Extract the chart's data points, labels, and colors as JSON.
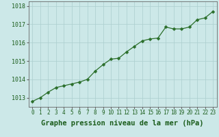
{
  "x": [
    0,
    1,
    2,
    3,
    4,
    5,
    6,
    7,
    8,
    9,
    10,
    11,
    12,
    13,
    14,
    15,
    16,
    17,
    18,
    19,
    20,
    21,
    22,
    23
  ],
  "y": [
    1012.8,
    1013.0,
    1013.3,
    1013.55,
    1013.65,
    1013.75,
    1013.85,
    1014.0,
    1014.45,
    1014.8,
    1015.1,
    1015.15,
    1015.5,
    1015.8,
    1016.1,
    1016.2,
    1016.25,
    1016.85,
    1016.75,
    1016.75,
    1016.85,
    1017.25,
    1017.35,
    1017.7
  ],
  "line_color": "#2a6e2a",
  "marker": "D",
  "marker_size": 2.5,
  "background_color": "#cce8e8",
  "grid_color": "#aacece",
  "xlabel": "Graphe pression niveau de la mer (hPa)",
  "xlabel_fontsize": 7.5,
  "xlabel_color": "#1a5c1a",
  "ylim": [
    1012.5,
    1018.25
  ],
  "yticks": [
    1013,
    1014,
    1015,
    1016,
    1017,
    1018
  ],
  "xticks": [
    0,
    1,
    2,
    3,
    4,
    5,
    6,
    7,
    8,
    9,
    10,
    11,
    12,
    13,
    14,
    15,
    16,
    17,
    18,
    19,
    20,
    21,
    22,
    23
  ],
  "tick_fontsize": 5.5,
  "tick_color": "#1a5c1a",
  "spine_color": "#666666",
  "ytick_fontsize": 6.0
}
